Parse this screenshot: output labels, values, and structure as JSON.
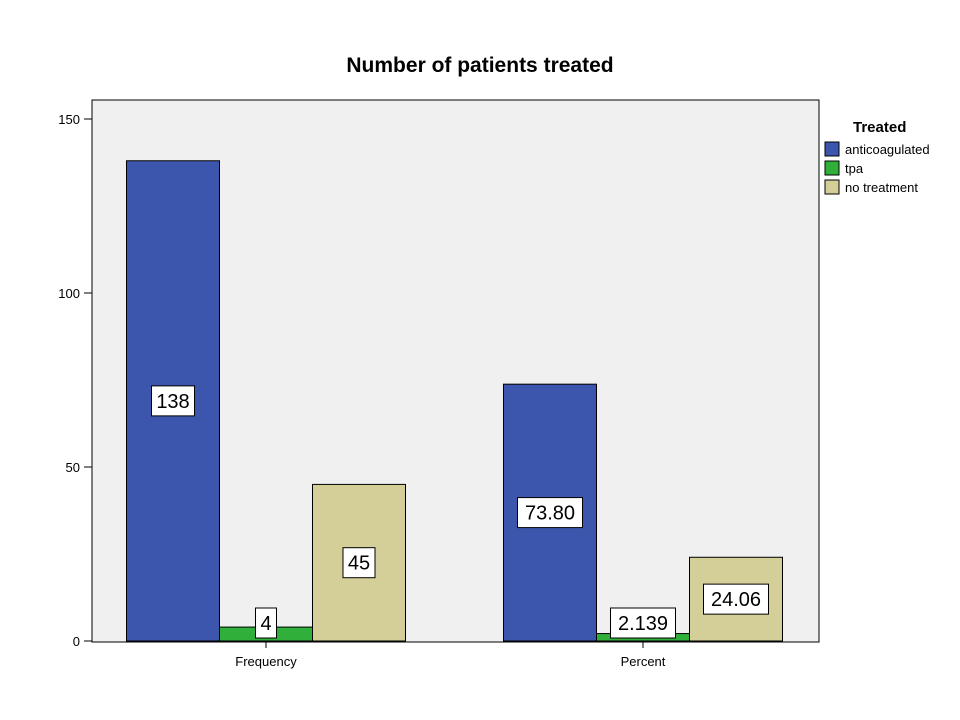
{
  "chart_data": {
    "type": "bar",
    "title": "Number of patients treated",
    "xlabel": "",
    "ylabel": "",
    "categories": [
      "Frequency",
      "Percent"
    ],
    "series": [
      {
        "name": "anticoagulated",
        "color": "#3d56ad",
        "values": [
          138,
          73.8
        ],
        "labels": [
          "138",
          "73.80"
        ]
      },
      {
        "name": "tpa",
        "color": "#30b03b",
        "values": [
          4,
          2.139
        ],
        "labels": [
          "4",
          "2.139"
        ]
      },
      {
        "name": "no treatment",
        "color": "#d4cf98",
        "values": [
          45,
          24.06
        ],
        "labels": [
          "45",
          "24.06"
        ]
      }
    ],
    "ylim": [
      0,
      150
    ],
    "yticks": [
      "0",
      "50",
      "100",
      "150"
    ],
    "grid": false,
    "legend": {
      "title": "Treated",
      "placement": "top-right, outside plot"
    },
    "plot_background": "#f0f0f0"
  }
}
